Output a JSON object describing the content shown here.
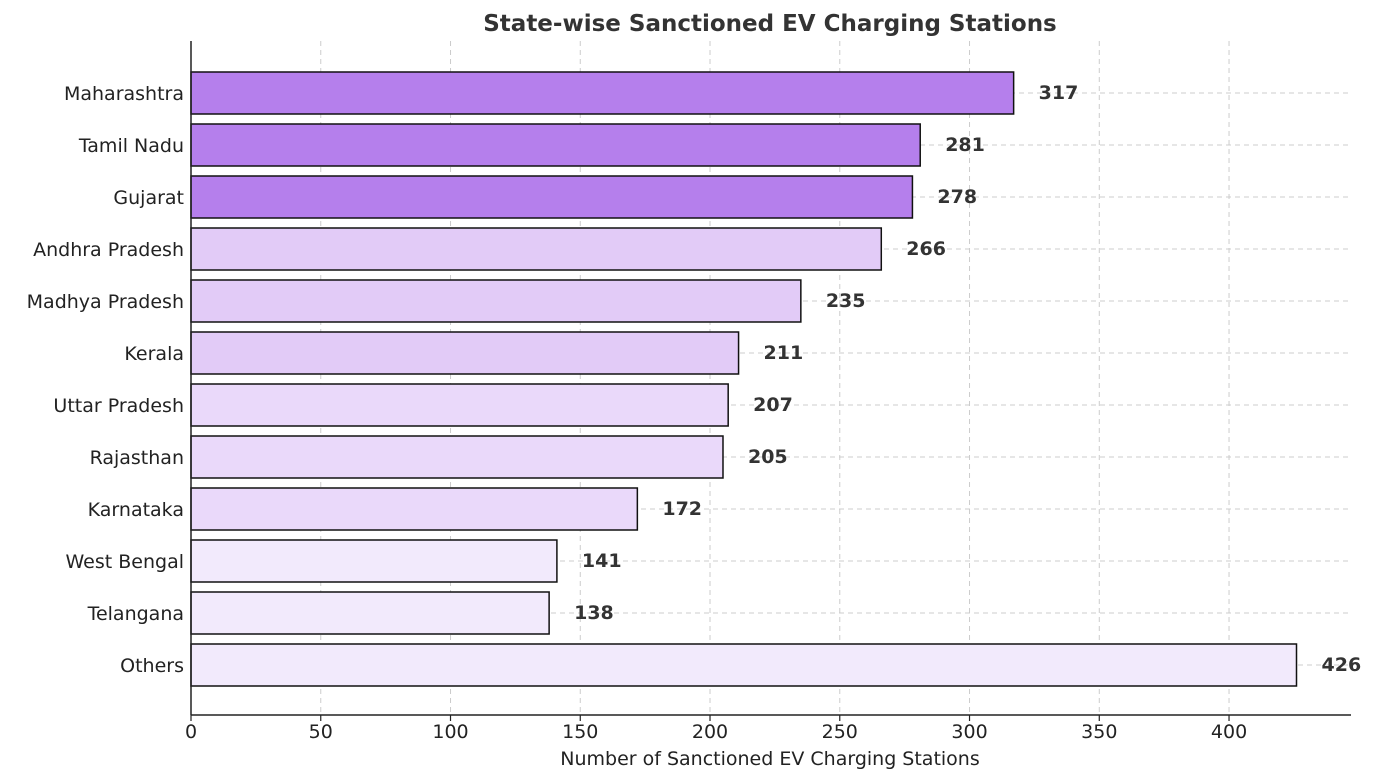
{
  "chart_data": {
    "type": "bar",
    "orientation": "horizontal",
    "title": "State-wise Sanctioned EV Charging Stations",
    "xlabel": "Number of Sanctioned EV Charging Stations",
    "ylabel": "",
    "xlim": [
      0,
      447
    ],
    "xticks": [
      0,
      50,
      100,
      150,
      200,
      250,
      300,
      350,
      400
    ],
    "grid": true,
    "categories": [
      "Maharashtra",
      "Tamil Nadu",
      "Gujarat",
      "Andhra Pradesh",
      "Madhya Pradesh",
      "Kerala",
      "Uttar Pradesh",
      "Rajasthan",
      "Karnataka",
      "West Bengal",
      "Telangana",
      "Others"
    ],
    "values": [
      317,
      281,
      278,
      266,
      235,
      211,
      207,
      205,
      172,
      141,
      138,
      426
    ],
    "value_labels": [
      "317",
      "281",
      "278",
      "266",
      "235",
      "211",
      "207",
      "205",
      "172",
      "141",
      "138",
      "426"
    ],
    "colors": [
      "#b57fec",
      "#b57fec",
      "#b57fec",
      "#e2cbf7",
      "#e2cbf7",
      "#e2cbf7",
      "#ead9fa",
      "#ead9fa",
      "#ead9fa",
      "#f2eafc",
      "#f2eafc",
      "#f2eafc"
    ]
  }
}
